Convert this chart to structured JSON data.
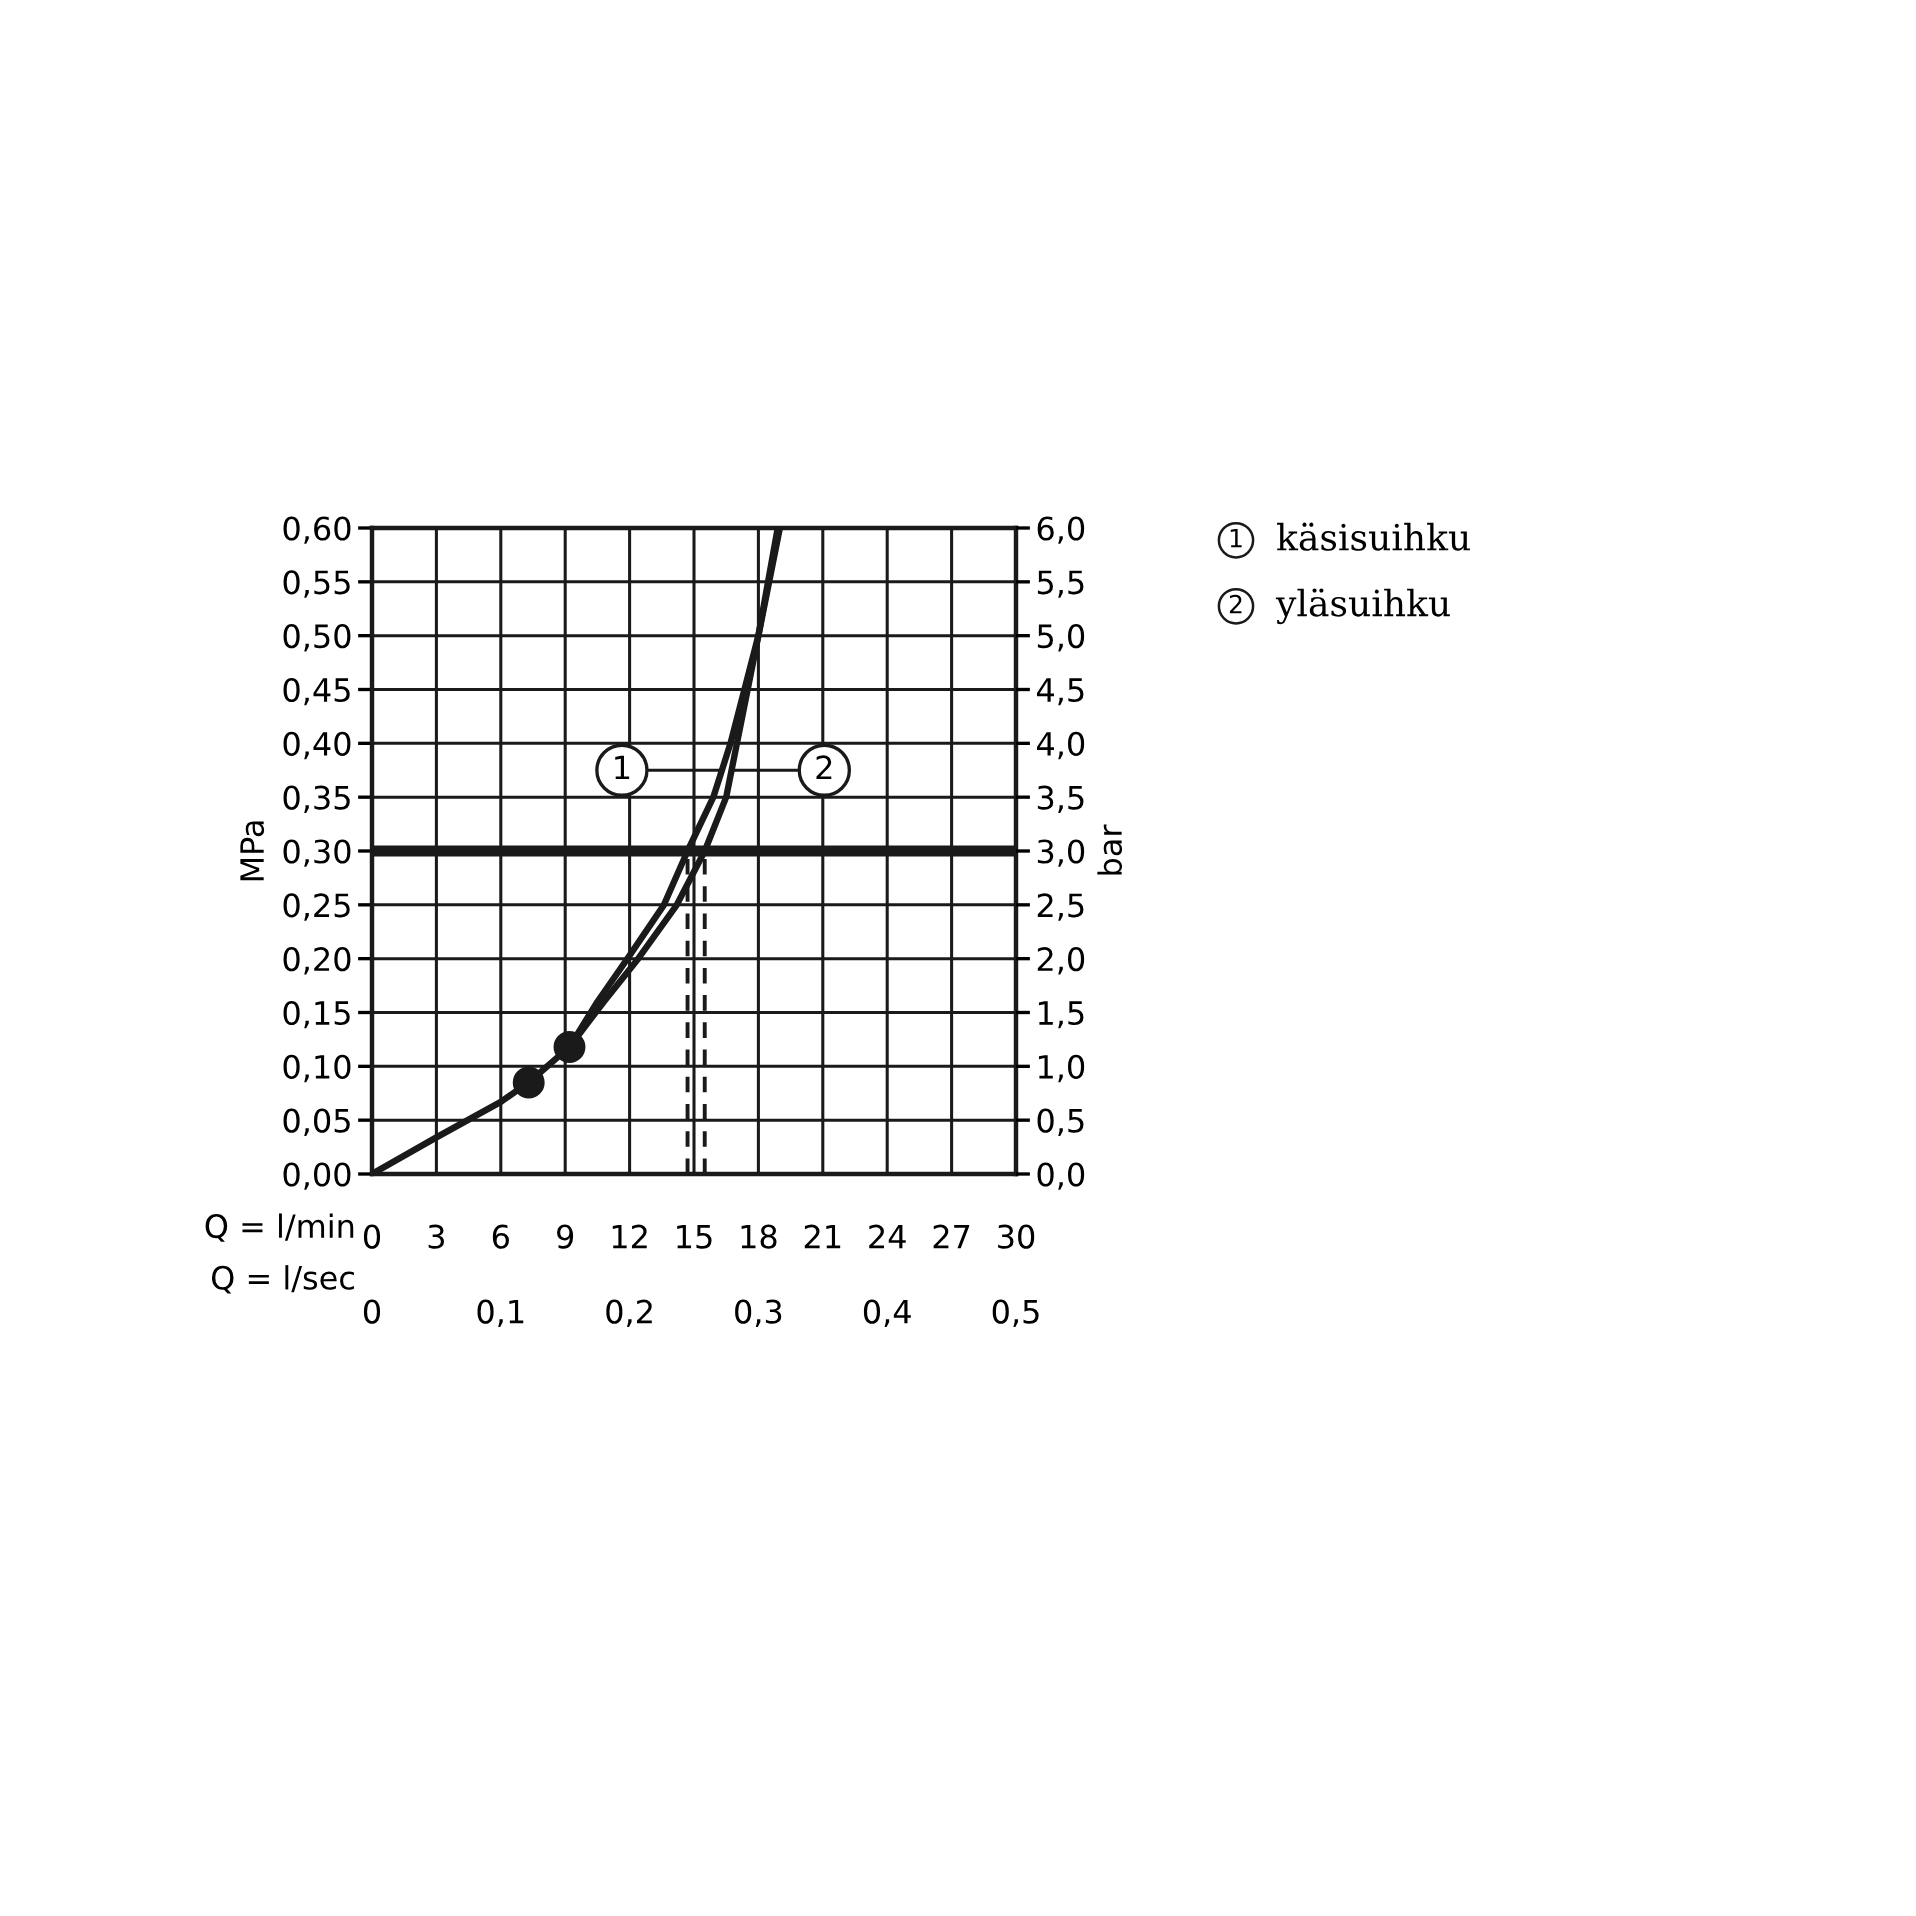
{
  "chart_data": {
    "type": "line",
    "xlabel": "Q = l/min",
    "x2label": "Q = l/sec",
    "ylabel": "MPa",
    "y2label": "bar",
    "x": [
      0,
      3,
      6,
      7.3,
      9.2,
      10.5,
      11.9,
      13.6,
      14.7,
      15.9,
      16.7,
      18.0,
      19.0
    ],
    "series": [
      {
        "color": "#1a1a1a",
        "values": [
          0,
          0.034,
          0.067,
          0.085,
          0.118,
          0.16,
          0.2,
          0.25,
          0.3,
          0.35,
          0.4,
          0.5,
          0.6
        ]
      },
      {
        "color": "#1a1a1a",
        "x": [
          9.2,
          10.8,
          12.4,
          14.2,
          15.5,
          16.5,
          17.0,
          18.0,
          18.9
        ],
        "values": [
          0.118,
          0.16,
          0.2,
          0.25,
          0.3,
          0.35,
          0.4,
          0.5,
          0.6
        ]
      },
      {
        "type": "scatter",
        "marker": "circle",
        "color": "#1a1a1a",
        "x": [
          7.3,
          9.2
        ],
        "values": [
          0.085,
          0.118
        ]
      }
    ],
    "xlim": [
      0,
      30
    ],
    "xticks": [
      0,
      3,
      6,
      9,
      12,
      15,
      18,
      21,
      24,
      27,
      30
    ],
    "x2lim": [
      0,
      0.5
    ],
    "x2ticks": [
      0,
      {
        "value": 0.1,
        "label": "0,1"
      },
      {
        "value": 0.2,
        "label": "0,2"
      },
      {
        "value": 0.3,
        "label": "0,3"
      },
      {
        "value": 0.4,
        "label": "0,4"
      },
      {
        "value": 0.5,
        "label": "0,5"
      }
    ],
    "ylim": [
      0,
      0.6
    ],
    "yticks": [
      {
        "value": 0,
        "label": "0,00"
      },
      {
        "value": 0.05,
        "label": "0,05"
      },
      {
        "value": 0.1,
        "label": "0,10"
      },
      {
        "value": 0.15,
        "label": "0,15"
      },
      {
        "value": 0.2,
        "label": "0,20"
      },
      {
        "value": 0.25,
        "label": "0,25"
      },
      {
        "value": 0.3,
        "label": "0,30"
      },
      {
        "value": 0.35,
        "label": "0,35"
      },
      {
        "value": 0.4,
        "label": "0,40"
      },
      {
        "value": 0.45,
        "label": "0,45"
      },
      {
        "value": 0.5,
        "label": "0,50"
      },
      {
        "value": 0.55,
        "label": "0,55"
      },
      {
        "value": 0.6,
        "label": "0,60"
      }
    ],
    "y2lim": [
      0,
      6
    ],
    "y2ticks": [
      {
        "value": 0,
        "label": "0,0"
      },
      {
        "value": 0.5,
        "label": "0,5"
      },
      {
        "value": 1,
        "label": "1,0"
      },
      {
        "value": 1.5,
        "label": "1,5"
      },
      {
        "value": 2,
        "label": "2,0"
      },
      {
        "value": 2.5,
        "label": "2,5"
      },
      {
        "value": 3,
        "label": "3,0"
      },
      {
        "value": 3.5,
        "label": "3,5"
      },
      {
        "value": 4,
        "label": "4,0"
      },
      {
        "value": 4.5,
        "label": "4,5"
      },
      {
        "value": 5,
        "label": "5,0"
      },
      {
        "value": 5.5,
        "label": "5,5"
      },
      {
        "value": 6,
        "label": "6,0"
      }
    ],
    "ref_lines": [
      {
        "axis": "y",
        "value": 0.3,
        "color": "#1a1a1a",
        "line_style": "solid"
      },
      {
        "axis": "x",
        "value": 14.7,
        "color": "#1a1a1a",
        "line_style": "dashed"
      },
      {
        "axis": "x",
        "value": 15.5,
        "color": "#1a1a1a",
        "line_style": "dashed"
      }
    ],
    "annotations": [
      {
        "text": "1",
        "x": 16.3,
        "y": 0.375
      },
      {
        "text": "2",
        "x": 16.8,
        "y": 0.375
      },
      "1 käsisuihku",
      "2 yläsuihku"
    ],
    "grid": true,
    "line_style": "solid"
  }
}
